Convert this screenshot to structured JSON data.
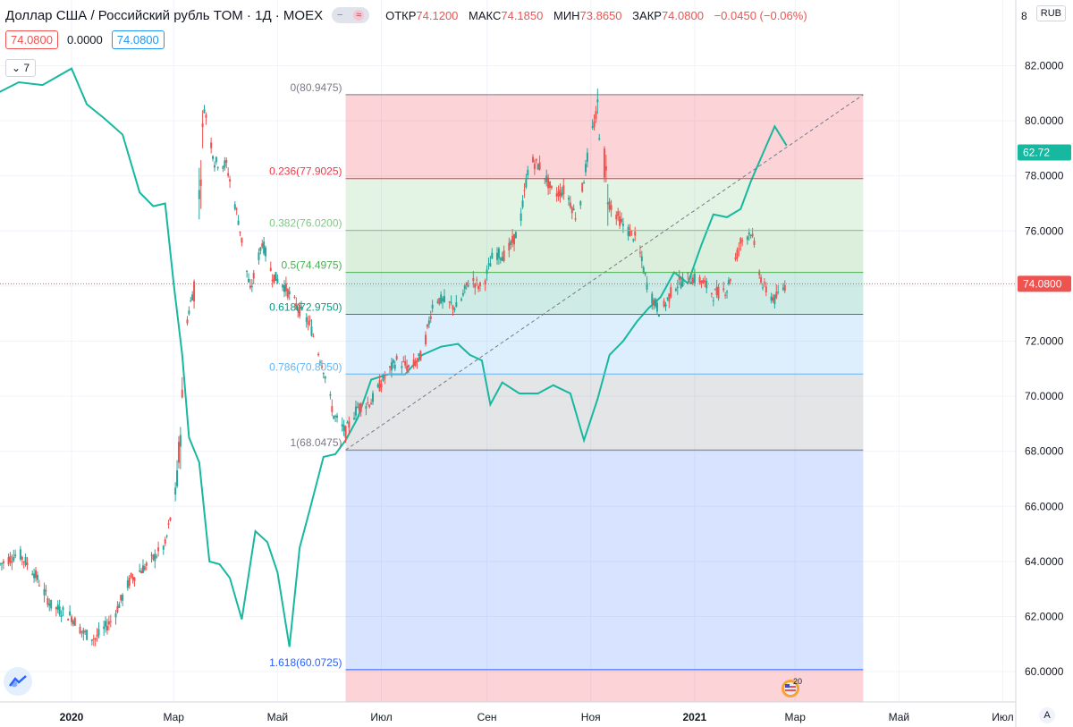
{
  "header": {
    "title": "Доллар США / Российский рубль TOM · 1Д · MOEX",
    "ohlc": [
      {
        "label": "ОТКР",
        "value": "74.1200"
      },
      {
        "label": "МАКС",
        "value": "74.1850"
      },
      {
        "label": "МИН",
        "value": "73.8650"
      },
      {
        "label": "ЗАКР",
        "value": "74.0800"
      }
    ],
    "change": "−0.0450 (−0.06%)",
    "pill_icon": "wave-icon"
  },
  "row2": {
    "price1": "74.0800",
    "spread": "0.0000",
    "price2": "74.0800"
  },
  "indicator_toggle": "7",
  "currency": "RUB",
  "top_right_label": "8",
  "auto_scale": "A",
  "flag_label": "20",
  "colors": {
    "up": "#26a69a",
    "down": "#ef5350",
    "line": "#17b8a0",
    "fib_0": "#787b86",
    "fib_236": "#f23645",
    "fib_382": "#81c784",
    "fib_5": "#4caf50",
    "fib_618": "#089981",
    "fib_786": "#64b5f6",
    "fib_1": "#787b86",
    "fib_1618": "#2962ff"
  },
  "chart_data": {
    "type": "candlestick",
    "x_ticks": [
      "2020",
      "Мар",
      "Май",
      "Июл",
      "Сен",
      "Ноя",
      "2021",
      "Мар",
      "Май",
      "Июл"
    ],
    "x_tick_dates": [
      "2020-01-01",
      "2020-03-01",
      "2020-05-01",
      "2020-07-01",
      "2020-09-01",
      "2020-11-01",
      "2021-01-01",
      "2021-03-01",
      "2021-05-01",
      "2021-07-01"
    ],
    "y_ticks": [
      "60.0000",
      "62.0000",
      "64.0000",
      "66.0000",
      "68.0000",
      "70.0000",
      "72.0000",
      "74.0000",
      "76.0000",
      "78.0000",
      "80.0000",
      "82.0000"
    ],
    "ylim": [
      59.0,
      83.5
    ],
    "last_price": {
      "value": 74.08,
      "label": "74.0800"
    },
    "overlay_label": {
      "value": 78.85,
      "label": "62.72"
    },
    "fibonacci": {
      "start_date": "2020-06-10",
      "end_date": "2021-04-10",
      "trend_from": {
        "date": "2020-06-10",
        "value": 68.0475
      },
      "trend_to": {
        "date": "2021-04-10",
        "value": 80.9475
      },
      "levels": [
        {
          "ratio": "0",
          "value": 80.9475,
          "label": "0(80.9475)",
          "color_key": "fib_0"
        },
        {
          "ratio": "0.236",
          "value": 77.9025,
          "label": "0.236(77.9025)",
          "color_key": "fib_236"
        },
        {
          "ratio": "0.382",
          "value": 76.02,
          "label": "0.382(76.0200)",
          "color_key": "fib_382"
        },
        {
          "ratio": "0.5",
          "value": 74.4975,
          "label": "0.5(74.4975)",
          "color_key": "fib_5"
        },
        {
          "ratio": "0.618",
          "value": 72.975,
          "label": "0.618(72.9750)",
          "color_key": "fib_618"
        },
        {
          "ratio": "0.786",
          "value": 70.805,
          "label": "0.786(70.8050)",
          "color_key": "fib_786"
        },
        {
          "ratio": "1",
          "value": 68.0475,
          "label": "1(68.0475)",
          "color_key": "fib_1"
        },
        {
          "ratio": "1.618",
          "value": 60.0725,
          "label": "1.618(60.0725)",
          "color_key": "fib_1618"
        }
      ]
    },
    "candle_anchors": [
      [
        "2019-11-20",
        63.9
      ],
      [
        "2019-12-01",
        64.3
      ],
      [
        "2019-12-10",
        63.6
      ],
      [
        "2019-12-20",
        62.4
      ],
      [
        "2020-01-01",
        62.0
      ],
      [
        "2020-01-08",
        61.4
      ],
      [
        "2020-01-15",
        61.2
      ],
      [
        "2020-01-25",
        61.9
      ],
      [
        "2020-02-05",
        63.4
      ],
      [
        "2020-02-15",
        63.9
      ],
      [
        "2020-02-25",
        64.6
      ],
      [
        "2020-03-03",
        66.8
      ],
      [
        "2020-03-09",
        72.8
      ],
      [
        "2020-03-13",
        74.0
      ],
      [
        "2020-03-19",
        80.5
      ],
      [
        "2020-03-25",
        78.5
      ],
      [
        "2020-04-01",
        78.4
      ],
      [
        "2020-04-08",
        76.4
      ],
      [
        "2020-04-15",
        73.8
      ],
      [
        "2020-04-22",
        75.6
      ],
      [
        "2020-04-28",
        74.4
      ],
      [
        "2020-05-05",
        74.0
      ],
      [
        "2020-05-12",
        73.3
      ],
      [
        "2020-05-20",
        72.6
      ],
      [
        "2020-05-28",
        71.0
      ],
      [
        "2020-06-03",
        69.3
      ],
      [
        "2020-06-10",
        68.7
      ],
      [
        "2020-06-17",
        69.6
      ],
      [
        "2020-06-25",
        69.8
      ],
      [
        "2020-07-02",
        70.6
      ],
      [
        "2020-07-10",
        71.3
      ],
      [
        "2020-07-18",
        71.0
      ],
      [
        "2020-07-25",
        71.5
      ],
      [
        "2020-08-01",
        73.6
      ],
      [
        "2020-08-08",
        73.4
      ],
      [
        "2020-08-15",
        73.2
      ],
      [
        "2020-08-22",
        74.3
      ],
      [
        "2020-08-29",
        73.9
      ],
      [
        "2020-09-05",
        75.2
      ],
      [
        "2020-09-12",
        75.1
      ],
      [
        "2020-09-20",
        76.1
      ],
      [
        "2020-09-26",
        78.6
      ],
      [
        "2020-10-03",
        78.3
      ],
      [
        "2020-10-10",
        77.3
      ],
      [
        "2020-10-17",
        77.5
      ],
      [
        "2020-10-24",
        76.4
      ],
      [
        "2020-11-01",
        79.4
      ],
      [
        "2020-11-05",
        80.4
      ],
      [
        "2020-11-12",
        77.0
      ],
      [
        "2020-11-20",
        76.2
      ],
      [
        "2020-11-28",
        75.7
      ],
      [
        "2020-12-05",
        73.8
      ],
      [
        "2020-12-12",
        73.0
      ],
      [
        "2020-12-20",
        74.0
      ],
      [
        "2020-12-28",
        74.3
      ],
      [
        "2021-01-05",
        74.2
      ],
      [
        "2021-01-12",
        73.7
      ],
      [
        "2021-01-20",
        73.9
      ],
      [
        "2021-01-28",
        75.6
      ],
      [
        "2021-02-03",
        76.0
      ],
      [
        "2021-02-10",
        74.0
      ],
      [
        "2021-02-17",
        73.5
      ],
      [
        "2021-02-24",
        74.1
      ]
    ],
    "overlay_series": [
      [
        "2019-10-01",
        79.5
      ],
      [
        "2019-10-15",
        78.9
      ],
      [
        "2019-11-01",
        79.8
      ],
      [
        "2019-11-15",
        80.9
      ],
      [
        "2019-12-01",
        81.4
      ],
      [
        "2019-12-15",
        81.3
      ],
      [
        "2020-01-01",
        81.9
      ],
      [
        "2020-01-10",
        80.6
      ],
      [
        "2020-01-20",
        80.1
      ],
      [
        "2020-01-31",
        79.5
      ],
      [
        "2020-02-10",
        77.4
      ],
      [
        "2020-02-18",
        76.9
      ],
      [
        "2020-02-25",
        77.0
      ],
      [
        "2020-03-01",
        74.1
      ],
      [
        "2020-03-06",
        71.5
      ],
      [
        "2020-03-10",
        68.5
      ],
      [
        "2020-03-16",
        67.6
      ],
      [
        "2020-03-22",
        64.0
      ],
      [
        "2020-03-28",
        63.9
      ],
      [
        "2020-04-03",
        63.4
      ],
      [
        "2020-04-10",
        61.9
      ],
      [
        "2020-04-18",
        65.1
      ],
      [
        "2020-04-25",
        64.7
      ],
      [
        "2020-05-01",
        63.6
      ],
      [
        "2020-05-08",
        60.9
      ],
      [
        "2020-05-14",
        64.5
      ],
      [
        "2020-05-20",
        65.9
      ],
      [
        "2020-05-28",
        67.8
      ],
      [
        "2020-06-04",
        67.9
      ],
      [
        "2020-06-10",
        68.4
      ],
      [
        "2020-06-17",
        69.2
      ],
      [
        "2020-06-25",
        70.6
      ],
      [
        "2020-07-05",
        70.8
      ],
      [
        "2020-07-15",
        70.8
      ],
      [
        "2020-07-25",
        71.5
      ],
      [
        "2020-08-05",
        71.8
      ],
      [
        "2020-08-15",
        71.9
      ],
      [
        "2020-08-22",
        71.5
      ],
      [
        "2020-08-29",
        71.3
      ],
      [
        "2020-09-03",
        69.7
      ],
      [
        "2020-09-10",
        70.5
      ],
      [
        "2020-09-20",
        70.1
      ],
      [
        "2020-10-01",
        70.1
      ],
      [
        "2020-10-10",
        70.4
      ],
      [
        "2020-10-20",
        70.1
      ],
      [
        "2020-10-28",
        68.4
      ],
      [
        "2020-11-05",
        69.9
      ],
      [
        "2020-11-12",
        71.5
      ],
      [
        "2020-11-20",
        72.0
      ],
      [
        "2020-11-28",
        72.7
      ],
      [
        "2020-12-05",
        73.2
      ],
      [
        "2020-12-12",
        73.6
      ],
      [
        "2020-12-20",
        74.5
      ],
      [
        "2020-12-28",
        74.1
      ],
      [
        "2021-01-05",
        75.5
      ],
      [
        "2021-01-12",
        76.6
      ],
      [
        "2021-01-20",
        76.5
      ],
      [
        "2021-01-28",
        76.8
      ],
      [
        "2021-02-03",
        77.8
      ],
      [
        "2021-02-10",
        78.8
      ],
      [
        "2021-02-17",
        79.8
      ],
      [
        "2021-02-24",
        79.1
      ]
    ]
  }
}
